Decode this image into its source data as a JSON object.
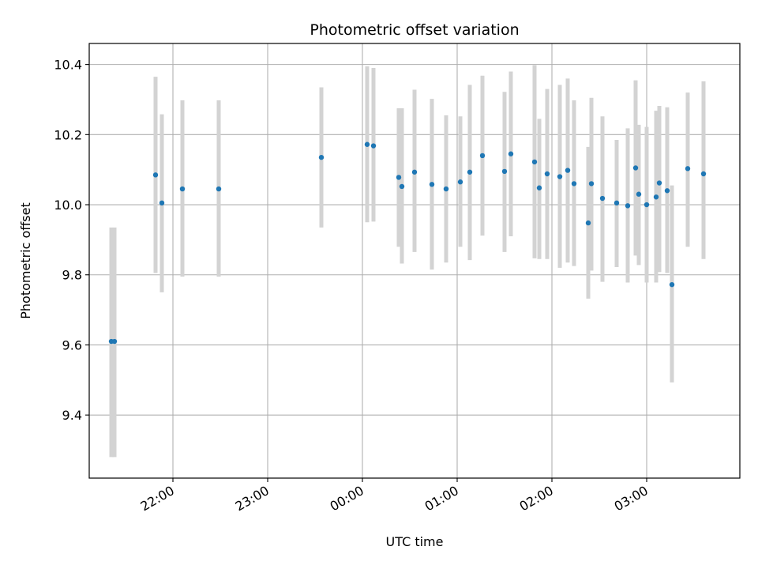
{
  "chart_data": {
    "type": "scatter",
    "title": "Photometric offset variation",
    "xlabel": "UTC time",
    "ylabel": "Photometric offset",
    "x_tick_labels": [
      "22:00",
      "23:00",
      "00:00",
      "01:00",
      "02:00",
      "03:00"
    ],
    "y_tick_labels": [
      "9.4",
      "9.6",
      "9.8",
      "10.0",
      "10.2",
      "10.4"
    ],
    "y_ticks": [
      9.4,
      9.6,
      9.8,
      10.0,
      10.2,
      10.4
    ],
    "ylim": [
      9.22,
      10.46
    ],
    "grid": true,
    "marker_color": "#1f77b4",
    "errorbar_color": "#d3d3d3",
    "x_ticks": [
      "22:00",
      "23:00",
      "00:00",
      "01:00",
      "02:00",
      "03:00"
    ],
    "xlim": [
      "21:07",
      "03:59"
    ],
    "x": [
      "21:21",
      "21:23",
      "21:49",
      "21:53",
      "22:06",
      "22:29",
      "23:34",
      "00:03",
      "00:07",
      "00:23",
      "00:25",
      "00:33",
      "00:44",
      "00:53",
      "01:02",
      "01:08",
      "01:16",
      "01:30",
      "01:34",
      "01:49",
      "01:52",
      "01:57",
      "02:05",
      "02:10",
      "02:14",
      "02:23",
      "02:25",
      "02:32",
      "02:41",
      "02:48",
      "02:53",
      "02:55",
      "03:00",
      "03:06",
      "03:08",
      "03:13",
      "03:16",
      "03:26",
      "03:36"
    ],
    "y": [
      9.61,
      9.61,
      10.085,
      10.005,
      10.045,
      10.045,
      10.135,
      10.172,
      10.168,
      10.078,
      10.052,
      10.093,
      10.058,
      10.045,
      10.065,
      10.093,
      10.14,
      10.095,
      10.145,
      10.122,
      10.048,
      10.088,
      10.08,
      10.098,
      10.06,
      9.948,
      10.06,
      10.018,
      10.005,
      9.997,
      10.105,
      10.03,
      10.0,
      10.022,
      10.062,
      10.04,
      9.772,
      10.103,
      10.088
    ],
    "yerr_low": [
      9.28,
      9.28,
      9.805,
      9.75,
      9.795,
      9.795,
      9.935,
      9.95,
      9.952,
      9.88,
      9.832,
      9.865,
      9.815,
      9.835,
      9.88,
      9.842,
      9.912,
      9.865,
      9.91,
      9.847,
      9.845,
      9.845,
      9.82,
      9.835,
      9.825,
      9.732,
      9.812,
      9.78,
      9.822,
      9.778,
      9.855,
      9.828,
      9.778,
      9.778,
      9.808,
      9.805,
      9.493,
      9.88,
      9.845
    ],
    "yerr_high": [
      9.935,
      9.935,
      10.365,
      10.258,
      10.298,
      10.298,
      10.335,
      10.395,
      10.39,
      10.275,
      10.275,
      10.328,
      10.302,
      10.255,
      10.252,
      10.342,
      10.368,
      10.322,
      10.38,
      10.398,
      10.245,
      10.33,
      10.342,
      10.36,
      10.298,
      10.165,
      10.305,
      10.252,
      10.185,
      10.218,
      10.355,
      10.228,
      10.222,
      10.268,
      10.282,
      10.278,
      10.055,
      10.32,
      10.352
    ]
  }
}
